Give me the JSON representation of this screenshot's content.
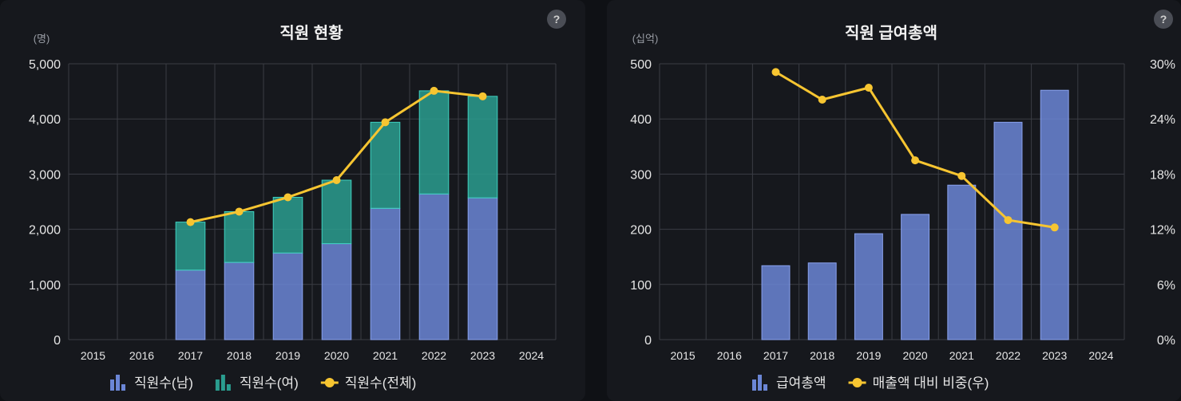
{
  "colors": {
    "male": "#6b86d6",
    "female": "#2a9d8f",
    "line": "#f7c531",
    "pay": "#6b86d6",
    "grid": "#3a3d44"
  },
  "help_label": "?",
  "chart_data": [
    {
      "type": "bar",
      "stacked": true,
      "title": "직원 현황",
      "unit_label": "(명)",
      "categories": [
        "2015",
        "2016",
        "2017",
        "2018",
        "2019",
        "2020",
        "2021",
        "2022",
        "2023",
        "2024"
      ],
      "ylim": [
        0,
        5000
      ],
      "yticks": [
        "0",
        "1,000",
        "2,000",
        "3,000",
        "4,000",
        "5,000"
      ],
      "series": [
        {
          "name": "직원수(남)",
          "kind": "bar",
          "values": [
            null,
            null,
            1260,
            1400,
            1570,
            1740,
            2380,
            2640,
            2570,
            null
          ]
        },
        {
          "name": "직원수(여)",
          "kind": "bar",
          "values": [
            null,
            null,
            870,
            920,
            1010,
            1150,
            1560,
            1870,
            1840,
            null
          ]
        },
        {
          "name": "직원수(전체)",
          "kind": "line",
          "values": [
            null,
            null,
            2130,
            2320,
            2580,
            2890,
            3940,
            4510,
            4410,
            null
          ]
        }
      ],
      "grid": true,
      "legend_position": "bottom"
    },
    {
      "type": "bar",
      "title": "직원 급여총액",
      "unit_label": "(십억)",
      "categories": [
        "2015",
        "2016",
        "2017",
        "2018",
        "2019",
        "2020",
        "2021",
        "2022",
        "2023",
        "2024"
      ],
      "ylim": [
        0,
        500
      ],
      "yticks": [
        "0",
        "100",
        "200",
        "300",
        "400",
        "500"
      ],
      "y2lim": [
        0,
        30
      ],
      "y2ticks": [
        "0%",
        "6%",
        "12%",
        "18%",
        "24%",
        "30%"
      ],
      "series": [
        {
          "name": "급여총액",
          "kind": "bar",
          "axis": "left",
          "values": [
            null,
            null,
            134,
            139,
            192,
            227,
            280,
            394,
            452,
            null
          ]
        },
        {
          "name": "매출액 대비 비중(우)",
          "kind": "line",
          "axis": "right",
          "values": [
            null,
            null,
            29.1,
            26.1,
            27.4,
            19.5,
            17.8,
            13.0,
            12.2,
            null
          ]
        }
      ],
      "grid": true,
      "legend_position": "bottom"
    }
  ]
}
